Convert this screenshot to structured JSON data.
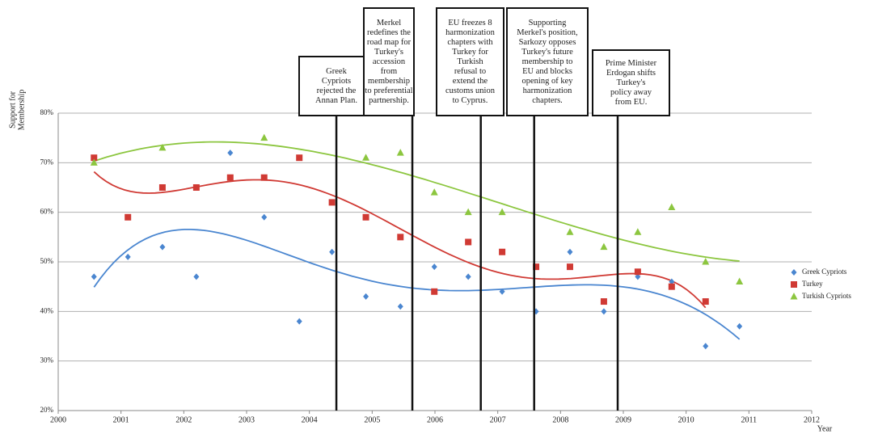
{
  "chart_data": {
    "type": "scatter",
    "y_label": [
      "Support for",
      "Membership"
    ],
    "x_label": "Year",
    "xlim": [
      2000,
      2012
    ],
    "xticks": [
      2000,
      2001,
      2002,
      2003,
      2004,
      2005,
      2006,
      2007,
      2008,
      2009,
      2010,
      2011,
      2012
    ],
    "ylim": [
      20,
      80
    ],
    "yticks": [
      {
        "value": 20,
        "label": "20%"
      },
      {
        "value": 30,
        "label": "30%"
      },
      {
        "value": 40,
        "label": "40%"
      },
      {
        "value": 50,
        "label": "50%"
      },
      {
        "value": 60,
        "label": "60%"
      },
      {
        "value": 70,
        "label": "70%"
      },
      {
        "value": 80,
        "label": "80%"
      }
    ],
    "grid": true,
    "legend": "right",
    "series": [
      {
        "name": "Greek Cypriots",
        "color": "#4a86d0",
        "marker": "diamond",
        "trendline_order": 5,
        "x": [
          2000.57,
          2001.11,
          2001.66,
          2002.2,
          2002.74,
          2003.28,
          2003.84,
          2004.36,
          2004.9,
          2005.45,
          2005.99,
          2006.53,
          2007.07,
          2007.61,
          2008.15,
          2008.69,
          2009.23,
          2009.77,
          2010.31,
          2010.85
        ],
        "values": [
          47,
          51,
          53,
          47,
          72,
          59,
          38,
          52,
          43,
          41,
          49,
          47,
          44,
          40,
          52,
          40,
          47,
          46,
          33,
          37
        ]
      },
      {
        "name": "Turkey",
        "color": "#d03a34",
        "marker": "square",
        "trendline_order": 5,
        "x": [
          2000.57,
          2001.11,
          2001.66,
          2002.2,
          2002.74,
          2003.28,
          2003.84,
          2004.36,
          2004.9,
          2005.45,
          2005.99,
          2006.53,
          2007.07,
          2007.61,
          2008.15,
          2008.69,
          2009.23,
          2009.77,
          2010.31
        ],
        "values": [
          71,
          59,
          65,
          65,
          67,
          67,
          71,
          62,
          59,
          55,
          44,
          54,
          52,
          49,
          49,
          42,
          48,
          45,
          42
        ]
      },
      {
        "name": "Turkish Cypriots",
        "color": "#8cc63f",
        "marker": "triangle",
        "trendline_order": 3,
        "x": [
          2000.57,
          2001.66,
          2003.28,
          2004.9,
          2005.45,
          2005.99,
          2006.53,
          2007.07,
          2008.15,
          2008.69,
          2009.23,
          2009.77,
          2010.31,
          2010.85
        ],
        "values": [
          70,
          73,
          75,
          71,
          72,
          64,
          60,
          60,
          56,
          53,
          56,
          61,
          50,
          46
        ]
      }
    ],
    "annotations": [
      {
        "x": 2004.43,
        "lines": [
          "Greek",
          "Cypriots",
          "rejected the",
          "Annan Plan."
        ]
      },
      {
        "x": 2005.64,
        "lines": [
          "Merkel",
          "redefines the",
          "road map for",
          "Turkey's",
          "accession",
          "from",
          "membership",
          "to preferential",
          "partnership."
        ]
      },
      {
        "x": 2006.73,
        "lines": [
          "EU freezes 8",
          "harmonization",
          "chapters with",
          "Turkey for",
          "Turkish",
          "refusal to",
          "extend the",
          "customs union",
          "to Cyprus."
        ]
      },
      {
        "x": 2007.58,
        "lines": [
          "Supporting",
          "Merkel's position,",
          "Sarkozy opposes",
          "Turkey's future",
          "membership to",
          "EU and blocks",
          "opening of key",
          "harmonization",
          "chapters."
        ]
      },
      {
        "x": 2008.91,
        "lines": [
          "Prime Minister",
          "Erdogan shifts",
          "Turkey's",
          "policy away",
          "from EU."
        ]
      }
    ]
  }
}
